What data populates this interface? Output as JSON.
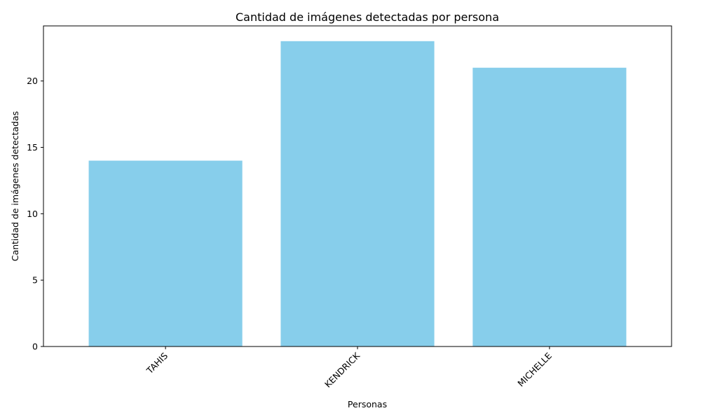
{
  "chart_data": {
    "type": "bar",
    "title": "Cantidad de imágenes detectadas por persona",
    "xlabel": "Personas",
    "ylabel": "Cantidad de imágenes detectadas",
    "categories": [
      "TAHIS",
      "KENDRICK",
      "MICHELLE"
    ],
    "values": [
      14,
      23,
      21
    ],
    "ylim": [
      0,
      24.15
    ],
    "yticks": [
      0,
      5,
      10,
      15,
      20
    ],
    "xtick_rotation_deg": 45,
    "grid": false,
    "legend": "none",
    "bar_color": "#87ceeb"
  }
}
